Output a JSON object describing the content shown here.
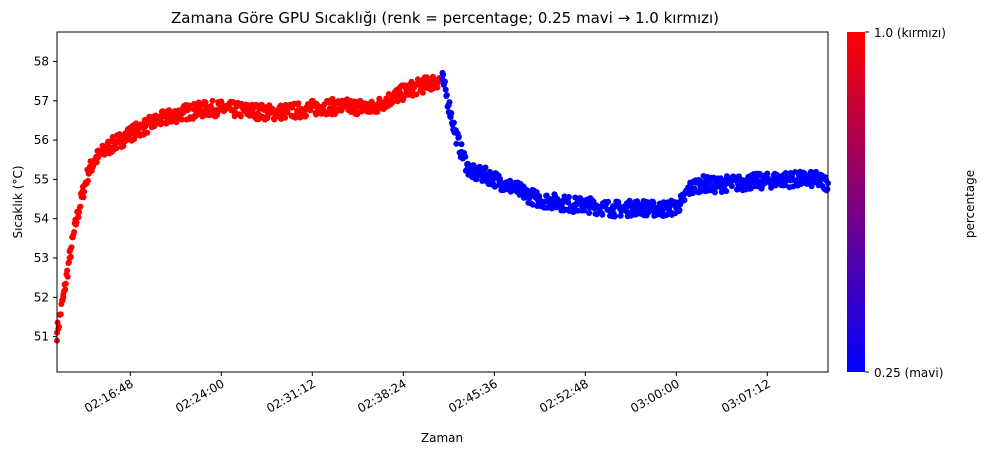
{
  "chart_data": {
    "type": "scatter",
    "title": "Zamana Göre GPU Sıcaklığı (renk = percentage; 0.25 mavi → 1.0 kırmızı)",
    "xlabel": "Zaman",
    "ylabel": "Sıcaklık (°C)",
    "x_time_range": [
      "02:11:00",
      "03:12:00"
    ],
    "ylim": [
      50.1,
      58.75
    ],
    "yticks": [
      51,
      52,
      53,
      54,
      55,
      56,
      57,
      58
    ],
    "xticks": [
      "02:16:48",
      "02:24:00",
      "02:31:12",
      "02:38:24",
      "02:45:36",
      "02:52:48",
      "03:00:00",
      "03:07:12"
    ],
    "grid": false,
    "colorbar": {
      "label": "percentage",
      "range": [
        0.25,
        1.0
      ],
      "top_label": "1.0 (kırmızı)",
      "bottom_label": "0.25 (mavi)",
      "colors": [
        "#0000ff",
        "#ff0000"
      ]
    },
    "series": [
      {
        "color": "#ff0000",
        "percentage": 1.0,
        "x": [
          "02:11:00",
          "02:11:30",
          "02:12:00",
          "02:12:30",
          "02:13:00",
          "02:13:30",
          "02:14:00",
          "02:15:00",
          "02:16:00",
          "02:17:00",
          "02:18:00",
          "02:19:00",
          "02:20:00",
          "02:21:00",
          "02:22:00",
          "02:23:00",
          "02:24:00",
          "02:26:00",
          "02:28:00",
          "02:30:00",
          "02:32:00",
          "02:34:00",
          "02:35:00",
          "02:36:00",
          "02:37:00",
          "02:38:00",
          "02:39:00",
          "02:40:00",
          "02:41:30"
        ],
        "y": [
          51.1,
          52.0,
          53.0,
          53.9,
          54.6,
          55.2,
          55.5,
          55.8,
          56.0,
          56.2,
          56.35,
          56.5,
          56.6,
          56.7,
          56.75,
          56.8,
          56.8,
          56.75,
          56.7,
          56.75,
          56.85,
          56.85,
          56.85,
          56.8,
          57.0,
          57.15,
          57.3,
          57.4,
          57.55
        ]
      },
      {
        "color": "#0000ff",
        "percentage": 0.25,
        "x": [
          "02:41:30",
          "02:42:00",
          "02:42:30",
          "02:43:00",
          "02:43:30",
          "02:44:00",
          "02:45:00",
          "02:46:00",
          "02:47:00",
          "02:48:00",
          "02:49:00",
          "02:50:00",
          "02:51:00",
          "02:52:00",
          "02:53:00",
          "02:54:00",
          "02:55:00",
          "02:56:00",
          "02:57:00",
          "02:58:00",
          "02:59:00",
          "03:00:00",
          "03:00:30",
          "03:01:00",
          "03:02:00",
          "03:03:00",
          "03:04:00",
          "03:05:00",
          "03:06:00",
          "03:07:00",
          "03:08:00",
          "03:09:00",
          "03:10:00",
          "03:11:00",
          "03:12:00"
        ],
        "y": [
          57.55,
          56.9,
          56.2,
          55.7,
          55.3,
          55.15,
          55.1,
          54.95,
          54.8,
          54.65,
          54.5,
          54.45,
          54.4,
          54.35,
          54.35,
          54.3,
          54.25,
          54.25,
          54.3,
          54.25,
          54.25,
          54.3,
          54.45,
          54.75,
          54.9,
          54.85,
          54.9,
          54.9,
          54.95,
          54.95,
          55.0,
          55.0,
          55.0,
          55.0,
          54.9
        ]
      }
    ]
  }
}
